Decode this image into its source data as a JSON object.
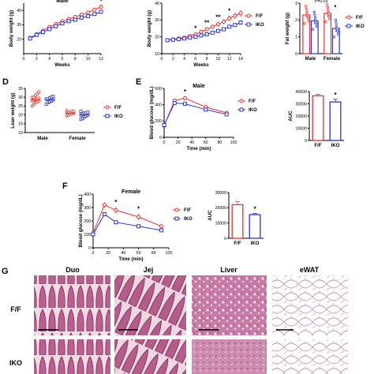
{
  "colors": {
    "ff": "#e8312f",
    "iko": "#2c35c9"
  },
  "chart_data": [
    {
      "id": "A",
      "panel": "",
      "type": "line",
      "title": "Male",
      "xlabel": "Weeks",
      "ylabel": "Body weight (g)",
      "xlim": [
        0,
        12
      ],
      "ylim": [
        10,
        45
      ],
      "xticks": [
        0,
        2,
        4,
        6,
        8,
        10,
        12
      ],
      "yticks": [
        20,
        30,
        40
      ],
      "x": [
        1,
        2,
        3,
        4,
        5,
        6,
        7,
        8,
        9,
        10,
        11,
        12
      ],
      "series": [
        {
          "name": "F/F",
          "values": [
            21,
            23.5,
            26,
            28.5,
            30.5,
            32.5,
            34,
            35.5,
            37,
            38.5,
            40.5,
            42.5
          ],
          "err": [
            0.5,
            0.6,
            0.6,
            0.7,
            0.7,
            0.7,
            0.8,
            0.8,
            0.8,
            0.9,
            0.9,
            1.0
          ]
        },
        {
          "name": "IKO",
          "values": [
            20.5,
            23,
            25,
            27,
            29,
            31,
            32.5,
            33.5,
            35,
            36,
            37.5,
            39
          ],
          "err": [
            0.5,
            0.5,
            0.6,
            0.6,
            0.7,
            0.7,
            0.7,
            0.8,
            0.8,
            0.8,
            0.9,
            0.9
          ]
        }
      ],
      "stars": [
        {
          "x": 12,
          "text": "*"
        }
      ]
    },
    {
      "id": "B",
      "panel": "",
      "type": "line",
      "title": "",
      "xlabel": "Weeks",
      "ylabel": "Body weight (g)",
      "xlim": [
        0,
        14
      ],
      "ylim": [
        10,
        40
      ],
      "xticks": [
        0,
        2,
        4,
        6,
        8,
        10,
        12,
        14
      ],
      "yticks": [
        10,
        20,
        30,
        40
      ],
      "x": [
        1,
        2,
        3,
        4,
        5,
        6,
        7,
        8,
        9,
        10,
        11,
        12,
        13,
        14
      ],
      "series": [
        {
          "name": "F/F",
          "values": [
            18,
            18.5,
            19,
            19.5,
            20.5,
            21.5,
            23,
            24.5,
            26,
            27.5,
            29,
            31,
            32.5,
            34
          ],
          "err": [
            0.5,
            0.6,
            0.6,
            0.7,
            0.8,
            0.9,
            1,
            1.1,
            1.2,
            1.4,
            1.5,
            1.7,
            1.9,
            2
          ]
        },
        {
          "name": "IKO",
          "values": [
            18,
            18.3,
            18.6,
            19,
            19.5,
            20,
            20.8,
            21.5,
            22.5,
            23.5,
            24.5,
            26,
            27,
            28.5
          ],
          "err": [
            0.4,
            0.5,
            0.5,
            0.5,
            0.6,
            0.6,
            0.7,
            0.7,
            0.8,
            0.8,
            0.9,
            1,
            1.1,
            1.2
          ]
        }
      ],
      "stars": [
        {
          "x": 6,
          "text": "*"
        },
        {
          "x": 8,
          "text": "**"
        },
        {
          "x": 10,
          "text": "**"
        },
        {
          "x": 12,
          "text": "*"
        }
      ],
      "legend": [
        "F/F",
        "IKO"
      ]
    },
    {
      "id": "C",
      "panel": "",
      "type": "bar",
      "title": "P=0.09",
      "xlabel": "",
      "ylabel": "Fat weight (g)",
      "categories": [
        "Male",
        "Female"
      ],
      "ylim": [
        0,
        3
      ],
      "yticks": [
        0,
        1,
        2,
        3
      ],
      "series": [
        {
          "name": "F/F",
          "values": [
            2.3,
            2.4
          ],
          "err": [
            0.15,
            0.25
          ]
        },
        {
          "name": "IKO",
          "values": [
            1.95,
            1.5
          ],
          "err": [
            0.2,
            0.2
          ]
        }
      ],
      "stars": [
        {
          "group": 1,
          "text": "*"
        }
      ],
      "legend": [
        "F/F",
        "IKO"
      ]
    },
    {
      "id": "D",
      "panel": "D",
      "type": "scatter",
      "title": "",
      "xlabel": "",
      "ylabel": "Lean weight (g)",
      "categories": [
        "Male",
        "Female"
      ],
      "ylim": [
        10,
        35
      ],
      "yticks": [
        10,
        15,
        20,
        25,
        30,
        35
      ],
      "series": [
        {
          "name": "F/F",
          "means": [
            28.5,
            21
          ],
          "err": [
            0.6,
            0.4
          ],
          "points": [
            [
              25,
              26,
              27,
              27.5,
              28,
              28,
              28.5,
              29,
              29,
              29.5,
              30,
              30,
              31,
              32,
              33
            ],
            [
              19.5,
              20,
              20.5,
              20.5,
              21,
              21,
              21.5,
              21.5,
              22,
              22,
              22.5
            ]
          ]
        },
        {
          "name": "IKO",
          "means": [
            28.5,
            20
          ],
          "err": [
            0.5,
            0.4
          ],
          "points": [
            [
              26,
              27,
              27.5,
              28,
              28.5,
              29,
              29,
              29.5,
              30,
              30.5
            ],
            [
              17.5,
              18,
              19,
              19.5,
              20,
              20,
              20.5,
              21,
              21,
              21.5,
              22
            ]
          ]
        }
      ],
      "legend": [
        "F/F",
        "IKO"
      ]
    },
    {
      "id": "E",
      "panel": "E",
      "type": "line",
      "title": "Male",
      "xlabel": "Time (min)",
      "ylabel": "Blood glucose (mg/dL)",
      "xlim": [
        0,
        100
      ],
      "ylim": [
        0,
        600
      ],
      "xticks": [
        0,
        20,
        40,
        60,
        80,
        100
      ],
      "yticks": [
        0,
        200,
        400,
        600
      ],
      "x": [
        0,
        15,
        30,
        60,
        90
      ],
      "series": [
        {
          "name": "F/F",
          "values": [
            140,
            450,
            480,
            370,
            300
          ],
          "err": [
            8,
            25,
            25,
            30,
            25
          ]
        },
        {
          "name": "IKO",
          "values": [
            150,
            420,
            410,
            340,
            280
          ],
          "err": [
            8,
            20,
            20,
            25,
            20
          ]
        }
      ],
      "stars": [
        {
          "x": 30,
          "text": "*"
        }
      ],
      "legend": [
        "F/F",
        "IKO"
      ]
    },
    {
      "id": "E-AUC",
      "panel": "",
      "type": "bar",
      "title": "",
      "xlabel": "",
      "ylabel": "AUC",
      "categories": [
        "F/F",
        "IKO"
      ],
      "ylim": [
        0,
        40000
      ],
      "yticks": [
        0,
        10000,
        20000,
        30000,
        40000
      ],
      "values": [
        36500,
        31500
      ],
      "err": [
        1200,
        2200
      ],
      "stars": [
        {
          "group": 1,
          "text": "*"
        }
      ]
    },
    {
      "id": "F",
      "panel": "F",
      "type": "line",
      "title": "Female",
      "xlabel": "Time (min)",
      "ylabel": "Blood glucose (mg/dL)",
      "xlim": [
        0,
        100
      ],
      "ylim": [
        0,
        400
      ],
      "xticks": [
        0,
        20,
        40,
        60,
        80,
        100
      ],
      "yticks": [
        0,
        100,
        200,
        300,
        400
      ],
      "x": [
        0,
        15,
        30,
        60,
        90
      ],
      "series": [
        {
          "name": "F/F",
          "values": [
            110,
            320,
            280,
            230,
            160
          ],
          "err": [
            8,
            20,
            25,
            25,
            15
          ]
        },
        {
          "name": "IKO",
          "values": [
            100,
            250,
            190,
            160,
            130
          ],
          "err": [
            6,
            12,
            10,
            10,
            8
          ]
        }
      ],
      "stars": [
        {
          "x": 30,
          "text": "*"
        },
        {
          "x": 60,
          "text": "*"
        }
      ],
      "legend": [
        "F/F",
        "IKO"
      ]
    },
    {
      "id": "F-AUC",
      "panel": "",
      "type": "bar",
      "title": "",
      "xlabel": "",
      "ylabel": "AUC",
      "categories": [
        "F/F",
        "IKO"
      ],
      "ylim": [
        0,
        30000
      ],
      "yticks": [
        0,
        10000,
        20000,
        30000
      ],
      "values": [
        22000,
        15500
      ],
      "err": [
        2000,
        800
      ],
      "stars": [
        {
          "group": 1,
          "text": "*"
        }
      ]
    }
  ],
  "histology": {
    "panel": "G",
    "columns": [
      "Duo",
      "Jej",
      "Liver",
      "eWAT"
    ],
    "rows": [
      "F/F",
      "IKO"
    ]
  }
}
